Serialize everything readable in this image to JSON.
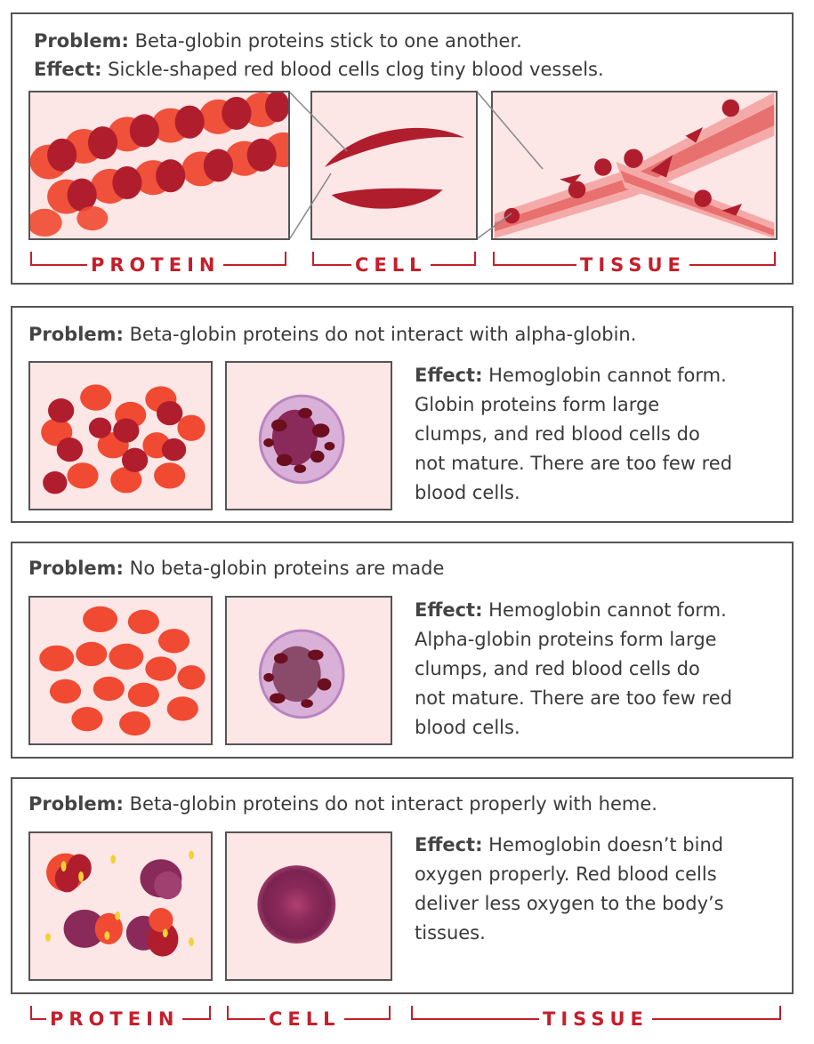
{
  "row1": {
    "problem_label": "Problem:",
    "problem_text": "Beta-globin proteins stick to one another.",
    "effect_label": "Effect:",
    "effect_text": "Sickle-shaped red blood cells clog tiny blood vessels.",
    "labels": [
      "PROTEIN",
      "CELL",
      "TISSUE"
    ]
  },
  "row2": {
    "problem_label": "Problem:",
    "problem_text": "Beta-globin proteins do not interact with alpha-globin.",
    "effect_label": "Effect:",
    "effect_lines": [
      "Hemoglobin cannot form.",
      "Globin proteins form large",
      "clumps, and red blood cells do",
      "not mature. There are too few red",
      "blood cells."
    ]
  },
  "row3": {
    "problem_label": "Problem:",
    "problem_text": "No beta-globin proteins are made",
    "effect_label": "Effect:",
    "effect_lines": [
      "Hemoglobin cannot form.",
      "Alpha-globin proteins form large",
      "clumps, and red blood cells do",
      "not mature. There are too few red",
      "blood cells."
    ]
  },
  "row4": {
    "problem_label": "Problem:",
    "problem_text": "Beta-globin proteins do not interact properly with heme.",
    "effect_label": "Effect:",
    "effect_lines": [
      "Hemoglobin doesn’t bind",
      "oxygen properly. Red blood cells",
      "deliver less oxygen to the body’s",
      "tissues."
    ]
  },
  "bottom_labels": [
    "PROTEIN",
    "CELL",
    "TISSUE"
  ],
  "colors": {
    "accent": "#c41f2b",
    "dark_red": "#b01e2e",
    "orange_red": "#f04a32",
    "purple": "#8a2a5a",
    "panel_bg": "#fde6e6"
  }
}
